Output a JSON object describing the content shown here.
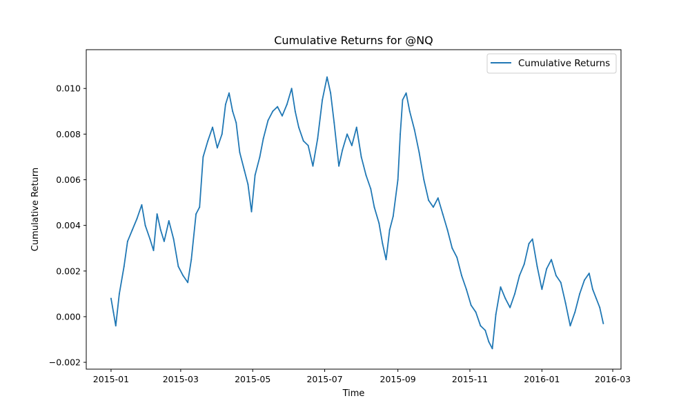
{
  "chart_data": {
    "type": "line",
    "title": "Cumulative Returns for @NQ",
    "xlabel": "Time",
    "ylabel": "Cumulative Return",
    "xlim": [
      "2014-12-11",
      "2016-03-08"
    ],
    "ylim": [
      -0.0023,
      0.0117
    ],
    "x_ticks": [
      {
        "value": "2015-01-01",
        "label": "2015-01"
      },
      {
        "value": "2015-03-01",
        "label": "2015-03"
      },
      {
        "value": "2015-05-01",
        "label": "2015-05"
      },
      {
        "value": "2015-07-01",
        "label": "2015-07"
      },
      {
        "value": "2015-09-01",
        "label": "2015-09"
      },
      {
        "value": "2015-11-01",
        "label": "2015-11"
      },
      {
        "value": "2016-01-01",
        "label": "2016-01"
      },
      {
        "value": "2016-03-01",
        "label": "2016-03"
      }
    ],
    "y_ticks": [
      {
        "value": -0.002,
        "label": "−0.002"
      },
      {
        "value": 0.0,
        "label": "0.000"
      },
      {
        "value": 0.002,
        "label": "0.002"
      },
      {
        "value": 0.004,
        "label": "0.004"
      },
      {
        "value": 0.006,
        "label": "0.006"
      },
      {
        "value": 0.008,
        "label": "0.008"
      },
      {
        "value": 0.01,
        "label": "0.010"
      }
    ],
    "grid": false,
    "legend_position": "top-right",
    "series": [
      {
        "name": "Cumulative Returns",
        "color": "#1f77b4",
        "points": [
          [
            "2015-01-01",
            0.0008
          ],
          [
            "2015-01-03",
            0.0002
          ],
          [
            "2015-01-05",
            -0.0004
          ],
          [
            "2015-01-08",
            0.001
          ],
          [
            "2015-01-12",
            0.0022
          ],
          [
            "2015-01-15",
            0.0033
          ],
          [
            "2015-01-19",
            0.0038
          ],
          [
            "2015-01-23",
            0.0043
          ],
          [
            "2015-01-27",
            0.0049
          ],
          [
            "2015-01-30",
            0.004
          ],
          [
            "2015-02-03",
            0.0034
          ],
          [
            "2015-02-06",
            0.0029
          ],
          [
            "2015-02-09",
            0.0045
          ],
          [
            "2015-02-12",
            0.0038
          ],
          [
            "2015-02-15",
            0.0033
          ],
          [
            "2015-02-19",
            0.0042
          ],
          [
            "2015-02-23",
            0.0034
          ],
          [
            "2015-02-27",
            0.0022
          ],
          [
            "2015-03-03",
            0.0018
          ],
          [
            "2015-03-07",
            0.0015
          ],
          [
            "2015-03-10",
            0.0025
          ],
          [
            "2015-03-14",
            0.0045
          ],
          [
            "2015-03-17",
            0.0048
          ],
          [
            "2015-03-20",
            0.007
          ],
          [
            "2015-03-24",
            0.0077
          ],
          [
            "2015-03-28",
            0.0083
          ],
          [
            "2015-04-01",
            0.0074
          ],
          [
            "2015-04-05",
            0.008
          ],
          [
            "2015-04-08",
            0.0093
          ],
          [
            "2015-04-11",
            0.0098
          ],
          [
            "2015-04-14",
            0.009
          ],
          [
            "2015-04-17",
            0.0085
          ],
          [
            "2015-04-20",
            0.0072
          ],
          [
            "2015-04-24",
            0.0064
          ],
          [
            "2015-04-27",
            0.0058
          ],
          [
            "2015-04-30",
            0.0046
          ],
          [
            "2015-05-03",
            0.0062
          ],
          [
            "2015-05-07",
            0.007
          ],
          [
            "2015-05-10",
            0.0078
          ],
          [
            "2015-05-14",
            0.0086
          ],
          [
            "2015-05-18",
            0.009
          ],
          [
            "2015-05-22",
            0.0092
          ],
          [
            "2015-05-26",
            0.0088
          ],
          [
            "2015-05-30",
            0.0093
          ],
          [
            "2015-06-03",
            0.01
          ],
          [
            "2015-06-06",
            0.009
          ],
          [
            "2015-06-09",
            0.0083
          ],
          [
            "2015-06-13",
            0.0077
          ],
          [
            "2015-06-17",
            0.0075
          ],
          [
            "2015-06-21",
            0.0066
          ],
          [
            "2015-06-25",
            0.0078
          ],
          [
            "2015-06-29",
            0.0095
          ],
          [
            "2015-07-03",
            0.0105
          ],
          [
            "2015-07-06",
            0.0098
          ],
          [
            "2015-07-09",
            0.0085
          ],
          [
            "2015-07-13",
            0.0066
          ],
          [
            "2015-07-16",
            0.0073
          ],
          [
            "2015-07-20",
            0.008
          ],
          [
            "2015-07-24",
            0.0075
          ],
          [
            "2015-07-28",
            0.0083
          ],
          [
            "2015-08-01",
            0.007
          ],
          [
            "2015-08-05",
            0.0062
          ],
          [
            "2015-08-09",
            0.0056
          ],
          [
            "2015-08-12",
            0.0048
          ],
          [
            "2015-08-16",
            0.0041
          ],
          [
            "2015-08-19",
            0.0032
          ],
          [
            "2015-08-22",
            0.0025
          ],
          [
            "2015-08-25",
            0.0038
          ],
          [
            "2015-08-28",
            0.0044
          ],
          [
            "2015-09-01",
            0.006
          ],
          [
            "2015-09-03",
            0.008
          ],
          [
            "2015-09-05",
            0.0095
          ],
          [
            "2015-09-08",
            0.0098
          ],
          [
            "2015-09-11",
            0.009
          ],
          [
            "2015-09-15",
            0.0082
          ],
          [
            "2015-09-19",
            0.0072
          ],
          [
            "2015-09-23",
            0.006
          ],
          [
            "2015-09-27",
            0.0051
          ],
          [
            "2015-10-01",
            0.0048
          ],
          [
            "2015-10-05",
            0.0052
          ],
          [
            "2015-10-09",
            0.0045
          ],
          [
            "2015-10-13",
            0.0038
          ],
          [
            "2015-10-17",
            0.003
          ],
          [
            "2015-10-21",
            0.0026
          ],
          [
            "2015-10-25",
            0.0018
          ],
          [
            "2015-10-29",
            0.0012
          ],
          [
            "2015-11-02",
            0.0005
          ],
          [
            "2015-11-06",
            0.0002
          ],
          [
            "2015-11-10",
            -0.0004
          ],
          [
            "2015-11-14",
            -0.0006
          ],
          [
            "2015-11-17",
            -0.0011
          ],
          [
            "2015-11-20",
            -0.0014
          ],
          [
            "2015-11-23",
            0.0001
          ],
          [
            "2015-11-27",
            0.0013
          ],
          [
            "2015-12-01",
            0.0008
          ],
          [
            "2015-12-05",
            0.0004
          ],
          [
            "2015-12-09",
            0.001
          ],
          [
            "2015-12-13",
            0.0018
          ],
          [
            "2015-12-17",
            0.0023
          ],
          [
            "2015-12-21",
            0.0032
          ],
          [
            "2015-12-24",
            0.0034
          ],
          [
            "2015-12-28",
            0.0022
          ],
          [
            "2016-01-01",
            0.0012
          ],
          [
            "2016-01-05",
            0.0021
          ],
          [
            "2016-01-09",
            0.0025
          ],
          [
            "2016-01-13",
            0.0018
          ],
          [
            "2016-01-17",
            0.0015
          ],
          [
            "2016-01-21",
            0.0006
          ],
          [
            "2016-01-25",
            -0.0004
          ],
          [
            "2016-01-29",
            0.0002
          ],
          [
            "2016-02-02",
            0.001
          ],
          [
            "2016-02-06",
            0.0016
          ],
          [
            "2016-02-10",
            0.0019
          ],
          [
            "2016-02-13",
            0.0012
          ],
          [
            "2016-02-16",
            0.0008
          ],
          [
            "2016-02-19",
            0.0004
          ],
          [
            "2016-02-22",
            -0.0003
          ]
        ]
      }
    ]
  }
}
